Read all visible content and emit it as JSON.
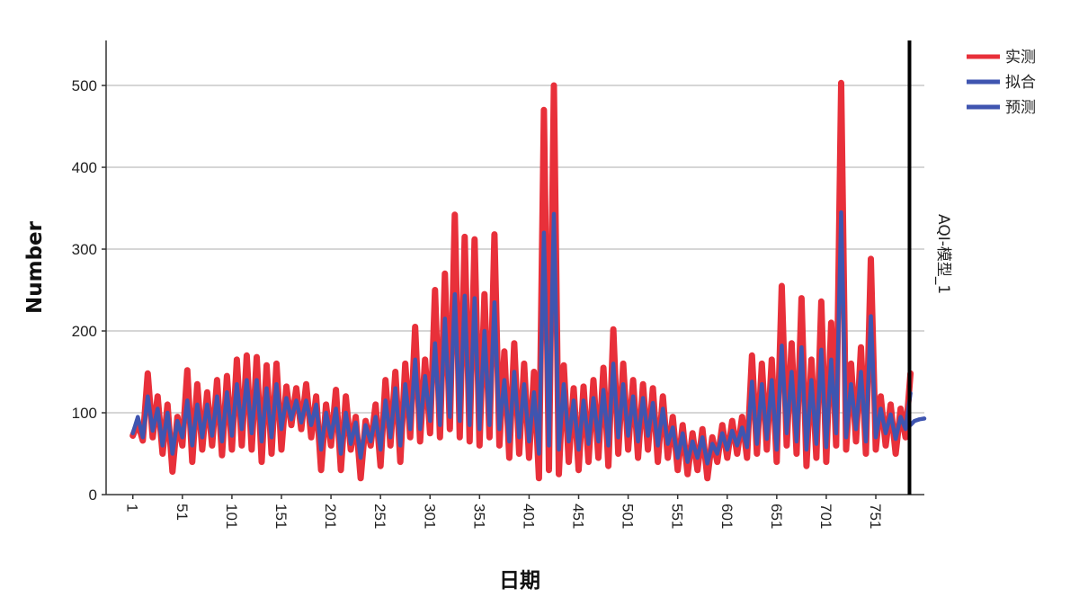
{
  "chart_data": {
    "type": "line",
    "title": "",
    "xlabel": "日期",
    "ylabel": "Number",
    "xlim": [
      -26,
      800
    ],
    "ylim": [
      0,
      555
    ],
    "x_ticks": [
      1,
      51,
      101,
      151,
      201,
      251,
      301,
      351,
      401,
      451,
      501,
      551,
      601,
      651,
      701,
      751
    ],
    "y_ticks": [
      0,
      100,
      200,
      300,
      400,
      500
    ],
    "grid": "horizontal",
    "legend_position": "top-right",
    "panel_label": "AQI-模型_1",
    "forecast_start": 785,
    "colors": {
      "observed": "#e8303a",
      "fitted": "#3f55b0",
      "forecast": "#3f55b0",
      "grid": "#c8c8c8",
      "axis": "#333333",
      "marker_line": "#000000"
    },
    "series": [
      {
        "name": "实测",
        "key": "observed",
        "points": [
          [
            1,
            72
          ],
          [
            6,
            88
          ],
          [
            11,
            66
          ],
          [
            16,
            148
          ],
          [
            21,
            70
          ],
          [
            26,
            120
          ],
          [
            31,
            50
          ],
          [
            36,
            110
          ],
          [
            41,
            28
          ],
          [
            46,
            95
          ],
          [
            51,
            60
          ],
          [
            56,
            152
          ],
          [
            61,
            40
          ],
          [
            66,
            135
          ],
          [
            71,
            55
          ],
          [
            76,
            125
          ],
          [
            81,
            60
          ],
          [
            86,
            140
          ],
          [
            91,
            48
          ],
          [
            96,
            145
          ],
          [
            101,
            55
          ],
          [
            106,
            165
          ],
          [
            111,
            60
          ],
          [
            116,
            170
          ],
          [
            121,
            55
          ],
          [
            126,
            168
          ],
          [
            131,
            40
          ],
          [
            136,
            158
          ],
          [
            141,
            50
          ],
          [
            146,
            160
          ],
          [
            151,
            55
          ],
          [
            156,
            132
          ],
          [
            161,
            85
          ],
          [
            166,
            130
          ],
          [
            171,
            80
          ],
          [
            176,
            135
          ],
          [
            181,
            70
          ],
          [
            186,
            120
          ],
          [
            191,
            30
          ],
          [
            196,
            110
          ],
          [
            201,
            60
          ],
          [
            206,
            128
          ],
          [
            211,
            30
          ],
          [
            216,
            120
          ],
          [
            221,
            55
          ],
          [
            226,
            95
          ],
          [
            231,
            20
          ],
          [
            236,
            90
          ],
          [
            241,
            60
          ],
          [
            246,
            110
          ],
          [
            251,
            35
          ],
          [
            256,
            140
          ],
          [
            261,
            60
          ],
          [
            266,
            150
          ],
          [
            271,
            40
          ],
          [
            276,
            160
          ],
          [
            281,
            70
          ],
          [
            286,
            205
          ],
          [
            291,
            65
          ],
          [
            296,
            165
          ],
          [
            301,
            75
          ],
          [
            306,
            250
          ],
          [
            311,
            70
          ],
          [
            316,
            270
          ],
          [
            321,
            80
          ],
          [
            326,
            342
          ],
          [
            331,
            70
          ],
          [
            336,
            315
          ],
          [
            341,
            65
          ],
          [
            346,
            312
          ],
          [
            351,
            60
          ],
          [
            356,
            245
          ],
          [
            361,
            70
          ],
          [
            366,
            318
          ],
          [
            371,
            60
          ],
          [
            376,
            175
          ],
          [
            381,
            45
          ],
          [
            386,
            185
          ],
          [
            391,
            50
          ],
          [
            396,
            160
          ],
          [
            401,
            45
          ],
          [
            406,
            150
          ],
          [
            411,
            20
          ],
          [
            416,
            470
          ],
          [
            421,
            30
          ],
          [
            426,
            500
          ],
          [
            431,
            25
          ],
          [
            436,
            158
          ],
          [
            441,
            40
          ],
          [
            446,
            130
          ],
          [
            451,
            30
          ],
          [
            456,
            132
          ],
          [
            461,
            40
          ],
          [
            466,
            140
          ],
          [
            471,
            45
          ],
          [
            476,
            155
          ],
          [
            481,
            35
          ],
          [
            486,
            202
          ],
          [
            491,
            50
          ],
          [
            496,
            160
          ],
          [
            501,
            55
          ],
          [
            506,
            140
          ],
          [
            511,
            45
          ],
          [
            516,
            135
          ],
          [
            521,
            55
          ],
          [
            526,
            130
          ],
          [
            531,
            40
          ],
          [
            536,
            120
          ],
          [
            541,
            45
          ],
          [
            546,
            95
          ],
          [
            551,
            30
          ],
          [
            556,
            85
          ],
          [
            561,
            25
          ],
          [
            566,
            75
          ],
          [
            571,
            30
          ],
          [
            576,
            80
          ],
          [
            581,
            20
          ],
          [
            586,
            70
          ],
          [
            591,
            40
          ],
          [
            596,
            85
          ],
          [
            601,
            45
          ],
          [
            606,
            90
          ],
          [
            611,
            50
          ],
          [
            616,
            95
          ],
          [
            621,
            45
          ],
          [
            626,
            170
          ],
          [
            631,
            50
          ],
          [
            636,
            160
          ],
          [
            641,
            55
          ],
          [
            646,
            165
          ],
          [
            651,
            40
          ],
          [
            656,
            255
          ],
          [
            661,
            60
          ],
          [
            666,
            185
          ],
          [
            671,
            50
          ],
          [
            676,
            240
          ],
          [
            681,
            35
          ],
          [
            686,
            165
          ],
          [
            691,
            45
          ],
          [
            696,
            236
          ],
          [
            701,
            40
          ],
          [
            706,
            210
          ],
          [
            711,
            60
          ],
          [
            716,
            503
          ],
          [
            721,
            55
          ],
          [
            726,
            160
          ],
          [
            731,
            65
          ],
          [
            736,
            180
          ],
          [
            741,
            50
          ],
          [
            746,
            288
          ],
          [
            751,
            55
          ],
          [
            756,
            120
          ],
          [
            761,
            60
          ],
          [
            766,
            110
          ],
          [
            771,
            50
          ],
          [
            776,
            105
          ],
          [
            781,
            70
          ],
          [
            786,
            148
          ]
        ]
      },
      {
        "name": "拟合",
        "key": "fitted",
        "points": [
          [
            1,
            75
          ],
          [
            6,
            95
          ],
          [
            11,
            70
          ],
          [
            16,
            120
          ],
          [
            21,
            78
          ],
          [
            26,
            105
          ],
          [
            31,
            60
          ],
          [
            36,
            100
          ],
          [
            41,
            50
          ],
          [
            46,
            90
          ],
          [
            51,
            70
          ],
          [
            56,
            115
          ],
          [
            61,
            60
          ],
          [
            66,
            110
          ],
          [
            71,
            70
          ],
          [
            76,
            110
          ],
          [
            81,
            72
          ],
          [
            86,
            120
          ],
          [
            91,
            65
          ],
          [
            96,
            125
          ],
          [
            101,
            72
          ],
          [
            106,
            135
          ],
          [
            111,
            80
          ],
          [
            116,
            140
          ],
          [
            121,
            75
          ],
          [
            126,
            140
          ],
          [
            131,
            65
          ],
          [
            136,
            130
          ],
          [
            141,
            70
          ],
          [
            146,
            135
          ],
          [
            151,
            80
          ],
          [
            156,
            118
          ],
          [
            161,
            92
          ],
          [
            166,
            115
          ],
          [
            171,
            88
          ],
          [
            176,
            115
          ],
          [
            181,
            85
          ],
          [
            186,
            110
          ],
          [
            191,
            55
          ],
          [
            196,
            100
          ],
          [
            201,
            70
          ],
          [
            206,
            105
          ],
          [
            211,
            50
          ],
          [
            216,
            100
          ],
          [
            221,
            62
          ],
          [
            226,
            88
          ],
          [
            231,
            45
          ],
          [
            236,
            85
          ],
          [
            241,
            65
          ],
          [
            246,
            95
          ],
          [
            251,
            55
          ],
          [
            256,
            115
          ],
          [
            261,
            70
          ],
          [
            266,
            130
          ],
          [
            271,
            60
          ],
          [
            276,
            135
          ],
          [
            281,
            80
          ],
          [
            286,
            165
          ],
          [
            291,
            80
          ],
          [
            296,
            145
          ],
          [
            301,
            90
          ],
          [
            306,
            185
          ],
          [
            311,
            85
          ],
          [
            316,
            215
          ],
          [
            321,
            95
          ],
          [
            326,
            245
          ],
          [
            331,
            90
          ],
          [
            336,
            243
          ],
          [
            341,
            85
          ],
          [
            346,
            240
          ],
          [
            351,
            80
          ],
          [
            356,
            200
          ],
          [
            361,
            85
          ],
          [
            366,
            235
          ],
          [
            371,
            80
          ],
          [
            376,
            140
          ],
          [
            381,
            65
          ],
          [
            386,
            150
          ],
          [
            391,
            70
          ],
          [
            396,
            135
          ],
          [
            401,
            65
          ],
          [
            406,
            125
          ],
          [
            411,
            50
          ],
          [
            416,
            320
          ],
          [
            421,
            60
          ],
          [
            426,
            343
          ],
          [
            431,
            55
          ],
          [
            436,
            135
          ],
          [
            441,
            65
          ],
          [
            446,
            115
          ],
          [
            451,
            55
          ],
          [
            456,
            115
          ],
          [
            461,
            62
          ],
          [
            466,
            118
          ],
          [
            471,
            65
          ],
          [
            476,
            128
          ],
          [
            481,
            60
          ],
          [
            486,
            160
          ],
          [
            491,
            70
          ],
          [
            496,
            135
          ],
          [
            501,
            72
          ],
          [
            506,
            120
          ],
          [
            511,
            65
          ],
          [
            516,
            118
          ],
          [
            521,
            72
          ],
          [
            526,
            112
          ],
          [
            531,
            60
          ],
          [
            536,
            105
          ],
          [
            541,
            62
          ],
          [
            546,
            82
          ],
          [
            551,
            45
          ],
          [
            556,
            75
          ],
          [
            561,
            40
          ],
          [
            566,
            65
          ],
          [
            571,
            45
          ],
          [
            576,
            70
          ],
          [
            581,
            38
          ],
          [
            586,
            62
          ],
          [
            591,
            50
          ],
          [
            596,
            75
          ],
          [
            601,
            55
          ],
          [
            606,
            78
          ],
          [
            611,
            60
          ],
          [
            616,
            82
          ],
          [
            621,
            58
          ],
          [
            626,
            138
          ],
          [
            631,
            62
          ],
          [
            636,
            135
          ],
          [
            641,
            68
          ],
          [
            646,
            140
          ],
          [
            651,
            55
          ],
          [
            656,
            182
          ],
          [
            661,
            75
          ],
          [
            666,
            150
          ],
          [
            671,
            65
          ],
          [
            676,
            180
          ],
          [
            681,
            55
          ],
          [
            686,
            140
          ],
          [
            691,
            62
          ],
          [
            696,
            177
          ],
          [
            701,
            58
          ],
          [
            706,
            165
          ],
          [
            711,
            75
          ],
          [
            716,
            345
          ],
          [
            721,
            70
          ],
          [
            726,
            135
          ],
          [
            731,
            80
          ],
          [
            736,
            150
          ],
          [
            741,
            65
          ],
          [
            746,
            218
          ],
          [
            751,
            70
          ],
          [
            756,
            105
          ],
          [
            761,
            75
          ],
          [
            766,
            98
          ],
          [
            771,
            68
          ],
          [
            776,
            95
          ],
          [
            781,
            80
          ],
          [
            786,
            124
          ]
        ]
      },
      {
        "name": "预测",
        "key": "forecast",
        "points": [
          [
            786,
            85
          ],
          [
            790,
            90
          ],
          [
            795,
            92
          ],
          [
            800,
            93
          ]
        ]
      }
    ]
  }
}
